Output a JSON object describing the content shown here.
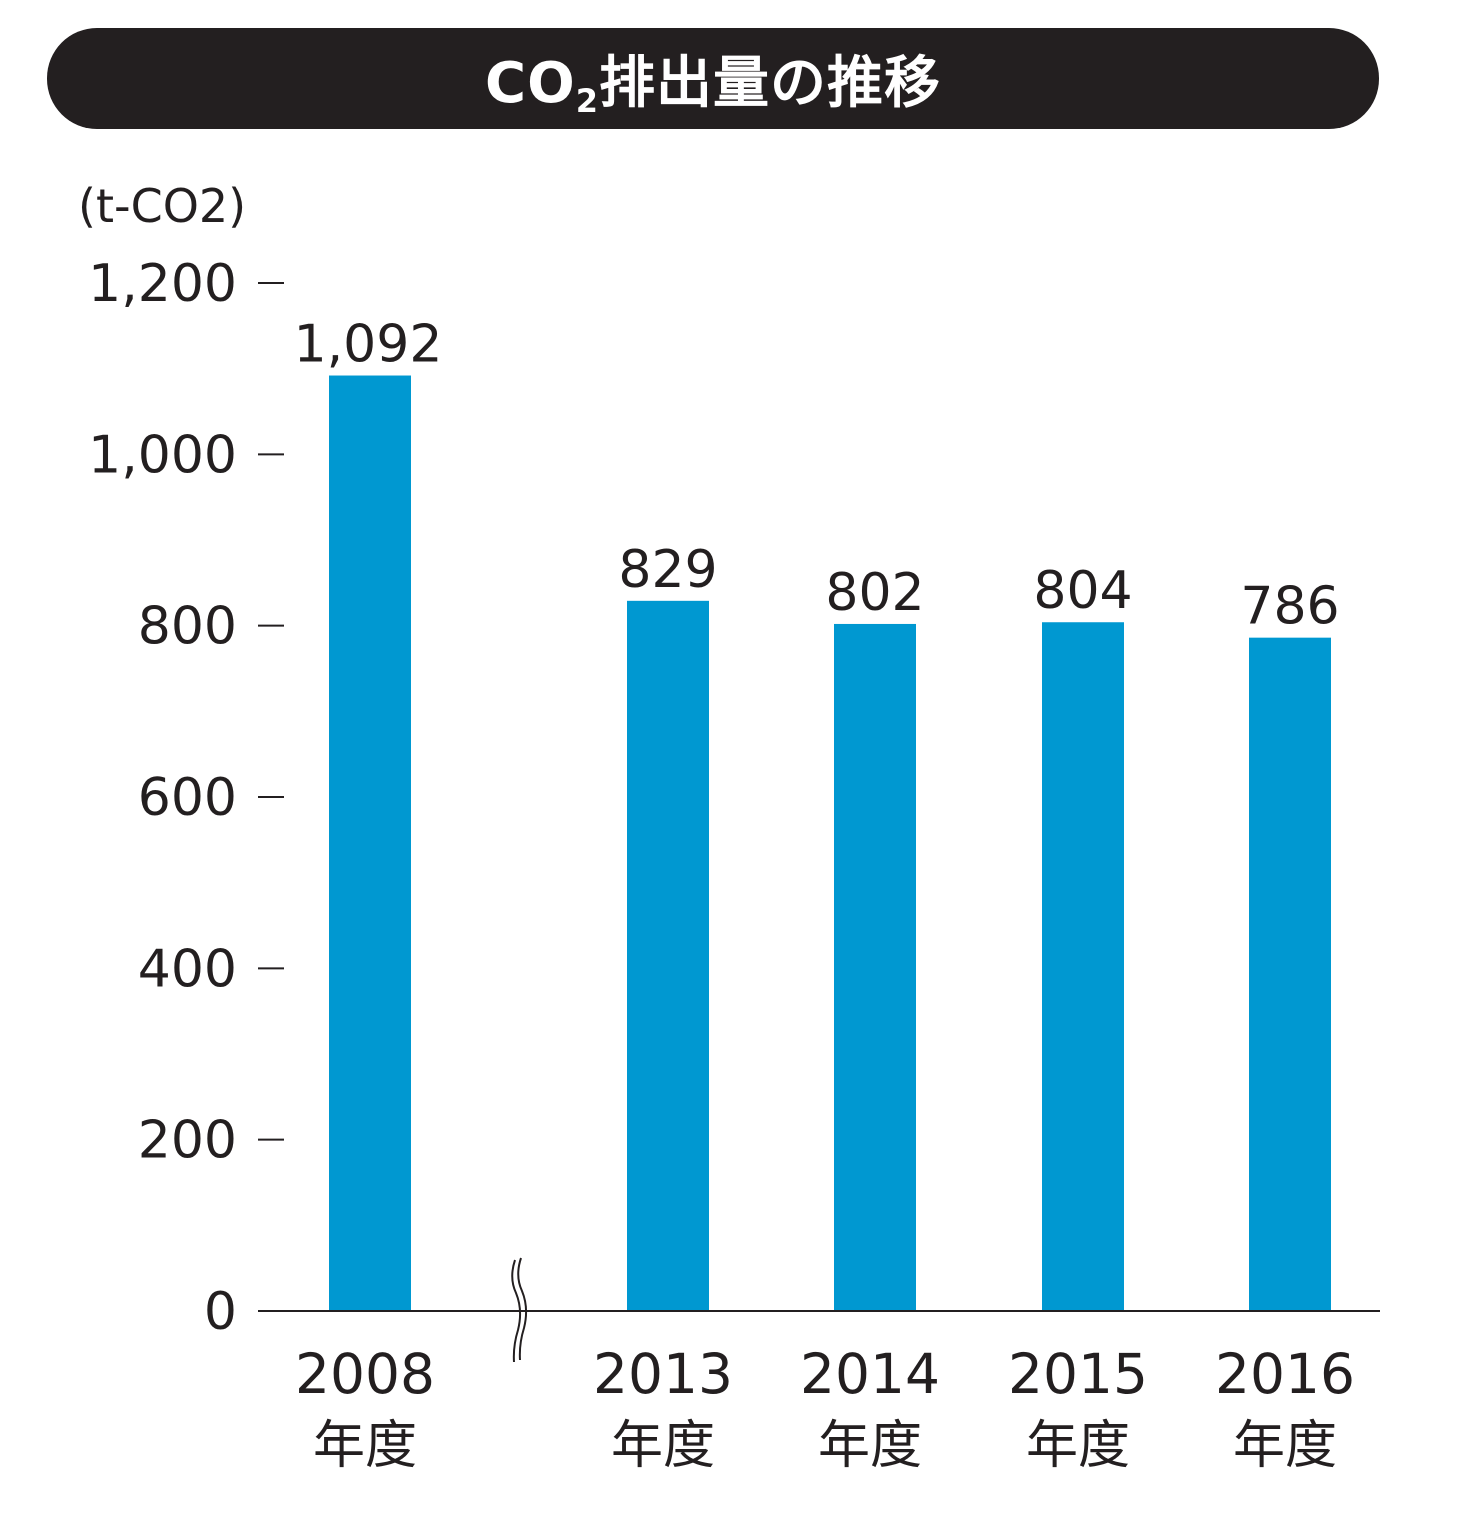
{
  "title": {
    "prefix": "CO",
    "subscript": "2",
    "suffix": "排出量の推移"
  },
  "colors": {
    "bar": "#0098d1",
    "title_bg": "#231f20",
    "text": "#231f20",
    "axis": "#231f20"
  },
  "chart_data": {
    "type": "bar",
    "title": "CO2排出量の推移",
    "unit_label": "(t-CO2)",
    "categories": [
      "2008",
      "2013",
      "2014",
      "2015",
      "2016"
    ],
    "category_suffix": "年度",
    "values": [
      1092,
      829,
      802,
      804,
      786
    ],
    "data_labels": [
      "1,092",
      "829",
      "802",
      "804",
      "786"
    ],
    "ylim": [
      0,
      1200
    ],
    "y_ticks": [
      0,
      200,
      400,
      600,
      800,
      1000,
      1200
    ],
    "y_tick_labels": [
      "0",
      "200",
      "400",
      "600",
      "800",
      "1,000",
      "1,200"
    ],
    "axis_break_between": [
      "2008",
      "2013"
    ],
    "grid": false,
    "legend": "none"
  }
}
